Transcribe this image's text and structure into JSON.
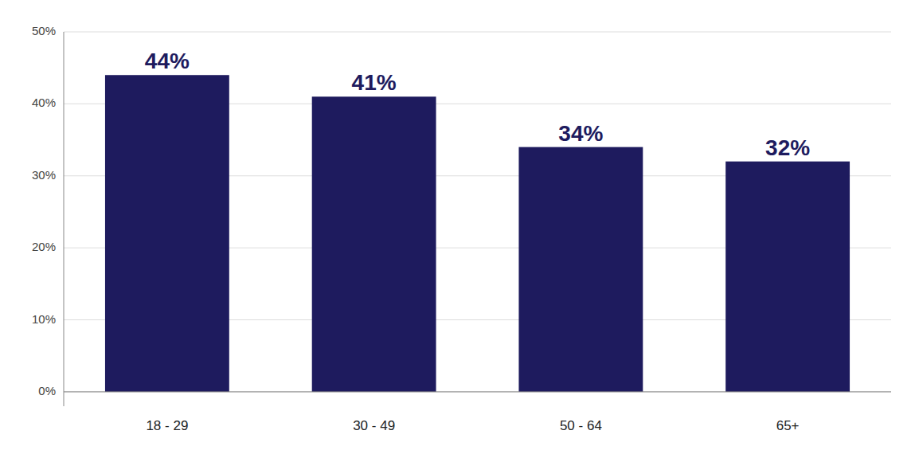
{
  "chart_data": {
    "type": "bar",
    "categories": [
      "18 - 29",
      "30 - 49",
      "50 - 64",
      "65+"
    ],
    "values": [
      44,
      41,
      34,
      32
    ],
    "value_labels": [
      "44%",
      "41%",
      "34%",
      "32%"
    ],
    "data_labels": true,
    "color": "#1e1b5e",
    "ylim": [
      -2,
      50
    ],
    "yticks": [
      {
        "value": 0,
        "label": "0%"
      },
      {
        "value": 10,
        "label": "10%"
      },
      {
        "value": 20,
        "label": "20%"
      },
      {
        "value": 30,
        "label": "30%"
      },
      {
        "value": 40,
        "label": "40%"
      },
      {
        "value": 50,
        "label": "50%"
      }
    ],
    "grid": true
  }
}
